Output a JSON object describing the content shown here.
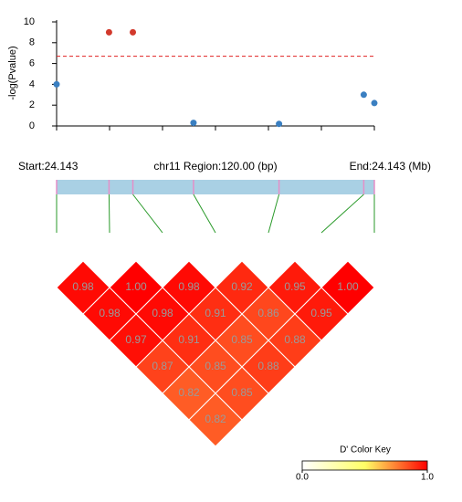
{
  "chart_data": [
    {
      "type": "scatter",
      "ylabel": "-log(Pvalue)",
      "x": [
        0,
        19.8,
        28.8,
        51.7,
        84,
        116,
        120
      ],
      "values": [
        4.0,
        9.0,
        9.0,
        0.3,
        0.2,
        3.0,
        2.2
      ],
      "colors": [
        "#3a7fc1",
        "#d2392c",
        "#d2392c",
        "#3a7fc1",
        "#3a7fc1",
        "#3a7fc1",
        "#3a7fc1"
      ],
      "threshold": 6.7,
      "threshold_color": "#e02020",
      "xlim": [
        0,
        120
      ],
      "xticks": [
        0,
        20,
        40,
        60,
        80,
        100,
        120
      ],
      "ylim": [
        0,
        10
      ],
      "yticks": [
        0,
        2,
        4,
        6,
        8,
        10
      ],
      "region": {
        "start": "Start:24.143",
        "center": "chr11 Region:120.00 (bp)",
        "end": "End:24.143 (Mb)"
      }
    },
    {
      "type": "heatmap",
      "values": [
        [
          0.98,
          1.0,
          0.98,
          0.92,
          0.95,
          1.0
        ],
        [
          0.98,
          0.98,
          0.91,
          0.86,
          0.95
        ],
        [
          0.97,
          0.91,
          0.85,
          0.88
        ],
        [
          0.87,
          0.85,
          0.88
        ],
        [
          0.82,
          0.85
        ],
        [
          0.82
        ]
      ],
      "value_labels": [
        [
          "0.98",
          "1.00",
          "0.98",
          "0.92",
          "0.95",
          "1.00"
        ],
        [
          "0.98",
          "0.98",
          "0.91",
          "0.86",
          "0.95"
        ],
        [
          "0.97",
          "0.91",
          "0.85",
          "0.88"
        ],
        [
          "0.87",
          "0.85",
          "0.88"
        ],
        [
          "0.82",
          "0.85"
        ],
        [
          "0.82"
        ]
      ],
      "color_key": {
        "title": "D' Color Key",
        "lim": [
          0,
          1
        ],
        "stops": [
          "#ffffff",
          "#ffff66",
          "#ff0000"
        ],
        "ticks": [
          {
            "value": 0,
            "label": "0.0"
          },
          {
            "value": 1,
            "label": "1.0"
          }
        ]
      }
    }
  ]
}
